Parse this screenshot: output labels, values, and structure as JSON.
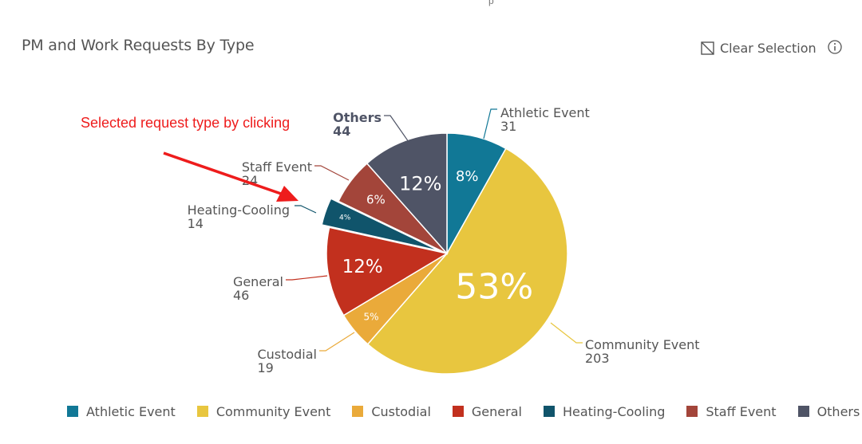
{
  "header": {
    "title": "PM and Work Requests By Type",
    "clear_selection_label": "Clear Selection",
    "top_hint": "p"
  },
  "annotation": {
    "text": "Selected request type by clicking",
    "color": "#ee1c1c"
  },
  "chart_data": {
    "type": "pie",
    "title": "PM and Work Requests By Type",
    "selected": "Heating-Cooling",
    "legend_position": "bottom",
    "slices": [
      {
        "label": "Athletic Event",
        "value": 31,
        "percent_label": "8%",
        "color": "#117896"
      },
      {
        "label": "Community Event",
        "value": 203,
        "percent_label": "53%",
        "color": "#e8c63f"
      },
      {
        "label": "Custodial",
        "value": 19,
        "percent_label": "5%",
        "color": "#eaaa3a"
      },
      {
        "label": "General",
        "value": 46,
        "percent_label": "12%",
        "color": "#c2301e"
      },
      {
        "label": "Heating-Cooling",
        "value": 14,
        "percent_label": "4%",
        "color": "#10546b"
      },
      {
        "label": "Staff Event",
        "value": 24,
        "percent_label": "6%",
        "color": "#a3453a"
      },
      {
        "label": "Others",
        "value": 44,
        "percent_label": "12%",
        "color": "#4f5466"
      }
    ]
  }
}
